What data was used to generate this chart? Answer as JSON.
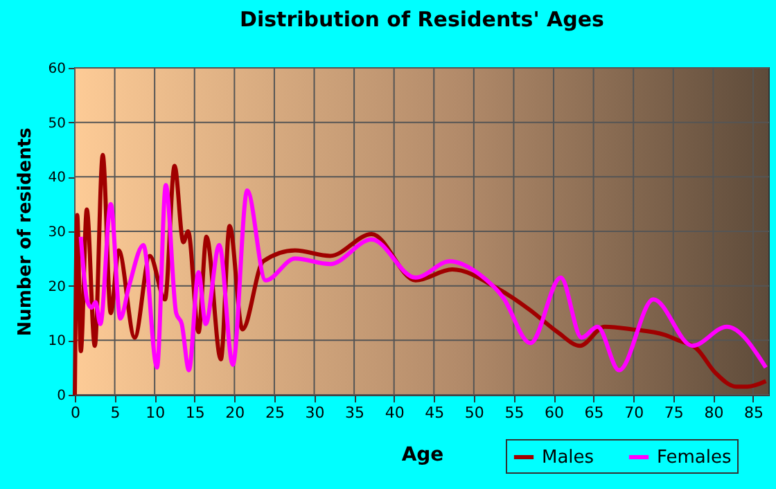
{
  "chart_data": {
    "type": "line",
    "title": "Distribution of Residents' Ages",
    "xlabel": "Age",
    "ylabel": "Number of residents",
    "xlim": [
      0,
      87
    ],
    "xticks": [
      0,
      5,
      10,
      15,
      20,
      25,
      30,
      35,
      40,
      45,
      50,
      55,
      60,
      65,
      70,
      75,
      80,
      85
    ],
    "ylim": [
      0,
      60
    ],
    "yticks": [
      0,
      10,
      20,
      30,
      40,
      50,
      60
    ],
    "grid": true,
    "legend": "bottom right",
    "marker": "none",
    "line_style": "solid",
    "series": [
      {
        "name": "Males",
        "color": "#a00000",
        "x": [
          0,
          0.3,
          0.75,
          1.5,
          2.5,
          3.5,
          4.5,
          5.5,
          7.5,
          9.4,
          11.3,
          12.5,
          13.6,
          14.2,
          15.5,
          16.5,
          18.3,
          19.4,
          21,
          23.6,
          27.6,
          32,
          37.2,
          42.7,
          47.3,
          53,
          57.1,
          60.5,
          63.3,
          66.4,
          69.9,
          73.9,
          75.6,
          77.9,
          80.3,
          82.9,
          84.3,
          86.6
        ],
        "values": [
          0,
          33,
          8,
          34,
          9,
          44,
          15,
          26.5,
          10.5,
          25.5,
          17.5,
          42,
          28,
          30,
          11.5,
          29,
          6.5,
          31,
          12,
          24.5,
          26.5,
          25.5,
          29.5,
          21,
          23,
          19.5,
          15.5,
          11.5,
          9,
          12.5,
          12,
          11,
          10,
          8.5,
          4,
          1.5,
          1.5,
          2.5
        ]
      },
      {
        "name": "Females",
        "color": "#ff00ff",
        "x": [
          0.75,
          1.6,
          2.1,
          2.6,
          3.2,
          4.5,
          5.7,
          6.8,
          8.6,
          10.3,
          11.4,
          12.7,
          13.4,
          14.3,
          15.5,
          16.4,
          18.1,
          19.8,
          21.6,
          23.9,
          27.6,
          32,
          37.2,
          42.7,
          47,
          50.8,
          53.6,
          57.1,
          60.9,
          63.5,
          65.5,
          68.2,
          72.5,
          77.4,
          81.7,
          86.6
        ],
        "values": [
          29,
          17,
          16,
          17,
          13,
          35,
          14,
          20,
          27.5,
          5,
          38.5,
          15,
          13,
          4.5,
          22.5,
          13,
          27.5,
          5.5,
          37.5,
          21,
          25,
          24,
          28.5,
          21.5,
          24.5,
          22,
          18,
          9.5,
          21.5,
          10.5,
          12.5,
          4.5,
          17.5,
          9,
          12.5,
          5
        ]
      }
    ]
  }
}
